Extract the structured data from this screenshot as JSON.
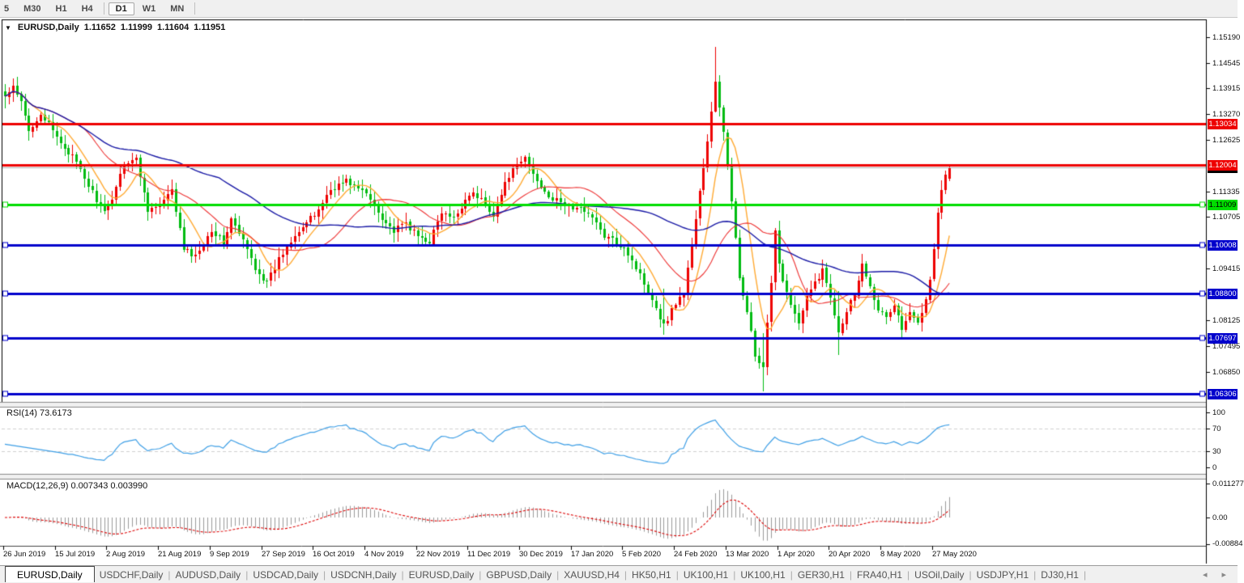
{
  "toolbar": {
    "timeframes": [
      {
        "label": "5",
        "active": false
      },
      {
        "label": "M30",
        "active": false
      },
      {
        "label": "H1",
        "active": false
      },
      {
        "label": "H4",
        "active": false
      },
      {
        "sep": true
      },
      {
        "label": "D1",
        "active": true
      },
      {
        "label": "W1",
        "active": false
      },
      {
        "label": "MN",
        "active": false
      },
      {
        "sep": true
      }
    ]
  },
  "chart_header": {
    "dropdown_icon": "▼",
    "symbol": "EURUSD,Daily",
    "open": "1.11652",
    "high": "1.11999",
    "low": "1.11604",
    "close": "1.11951"
  },
  "price_axis": {
    "ticks": [
      "1.15190",
      "1.14545",
      "1.13915",
      "1.13270",
      "1.12625",
      "1.11335",
      "1.10705",
      "1.09415",
      "1.08125",
      "1.07495",
      "1.06850"
    ]
  },
  "levels": [
    {
      "label": "1.13034",
      "value": 1.13034,
      "color": "#ee0000",
      "text": "#ffffff",
      "handles": false
    },
    {
      "label": "1.12004",
      "value": 1.12004,
      "color": "#ee0000",
      "text": "#ffffff",
      "handles": false
    },
    {
      "label": "1.11009",
      "value": 1.11009,
      "color": "#00dd00",
      "text": "#000000",
      "handles": true
    },
    {
      "label": "1.10008",
      "value": 1.10008,
      "color": "#0000cc",
      "text": "#ffffff",
      "handles": true
    },
    {
      "label": "1.08800",
      "value": 1.088,
      "color": "#0000cc",
      "text": "#ffffff",
      "handles": true
    },
    {
      "label": "1.07697",
      "value": 1.07697,
      "color": "#0000cc",
      "text": "#ffffff",
      "handles": true
    },
    {
      "label": "1.06306",
      "value": 1.06306,
      "color": "#0000cc",
      "text": "#ffffff",
      "handles": true
    }
  ],
  "current_price": {
    "label": "1.11951",
    "value": 1.11951,
    "line_color": "#b0b0b0",
    "badge_bg": "#000000",
    "badge_text": "#ffffff"
  },
  "rsi_panel": {
    "label": "RSI(14) 73.6173",
    "value": 73.6173,
    "axis": [
      {
        "label": "100",
        "value": 100
      },
      {
        "label": "70",
        "value": 70
      },
      {
        "label": "30",
        "value": 30
      },
      {
        "label": "0",
        "value": 0
      }
    ],
    "level_lines": [
      70,
      30
    ],
    "line_color": "#3e9fe6"
  },
  "macd_panel": {
    "label": "MACD(12,26,9) 0.007343 0.003990",
    "macd_value": 0.007343,
    "signal_value": 0.00399,
    "axis_max": {
      "label": "0.011277",
      "value": 0.011277
    },
    "axis_zero": {
      "label": "0.00",
      "value": 0
    },
    "axis_min": {
      "label": "-0.00884",
      "value": -0.00884
    },
    "hist_color": "#9a9a9a",
    "signal_color": "#dd0000"
  },
  "date_axis": {
    "labels": [
      "26 Jun 2019",
      "15 Jul 2019",
      "2 Aug 2019",
      "21 Aug 2019",
      "9 Sep 2019",
      "27 Sep 2019",
      "16 Oct 2019",
      "4 Nov 2019",
      "22 Nov 2019",
      "11 Dec 2019",
      "30 Dec 2019",
      "17 Jan 2020",
      "5 Feb 2020",
      "24 Feb 2020",
      "13 Mar 2020",
      "1 Apr 2020",
      "20 Apr 2020",
      "8 May 2020",
      "27 May 2020"
    ]
  },
  "tabs": {
    "items": [
      {
        "label": "EURUSD,Daily",
        "active": true
      },
      {
        "label": "USDCHF,Daily",
        "active": false
      },
      {
        "label": "AUDUSD,Daily",
        "active": false
      },
      {
        "label": "USDCAD,Daily",
        "active": false
      },
      {
        "label": "USDCNH,Daily",
        "active": false
      },
      {
        "label": "EURUSD,Daily",
        "active": false
      },
      {
        "label": "GBPUSD,Daily",
        "active": false
      },
      {
        "label": "XAUUSD,H4",
        "active": false
      },
      {
        "label": "HK50,H1",
        "active": false
      },
      {
        "label": "UK100,H1",
        "active": false
      },
      {
        "label": "UK100,H1",
        "active": false
      },
      {
        "label": "GER30,H1",
        "active": false
      },
      {
        "label": "FRA40,H1",
        "active": false
      },
      {
        "label": "USOil,Daily",
        "active": false
      },
      {
        "label": "USDJPY,H1",
        "active": false
      },
      {
        "label": "DJ30,H1",
        "active": false
      }
    ],
    "scroll_left": "◂",
    "scroll_right": "▸"
  },
  "chart_data": {
    "type": "candlestick",
    "symbol": "EURUSD",
    "timeframe": "Daily",
    "convention": {
      "bull_color": "#ee0000",
      "bear_color": "#00bb11",
      "note": "red = up candle, green = down candle"
    },
    "price_range": {
      "top": 1.1563,
      "bottom": 1.061
    },
    "bars": 239,
    "close_anchors": [
      [
        0,
        1.137
      ],
      [
        2,
        1.1392
      ],
      [
        4,
        1.1355
      ],
      [
        6,
        1.1285
      ],
      [
        9,
        1.133
      ],
      [
        13,
        1.1268
      ],
      [
        17,
        1.122
      ],
      [
        21,
        1.115
      ],
      [
        25,
        1.1078
      ],
      [
        27,
        1.112
      ],
      [
        30,
        1.1205
      ],
      [
        33,
        1.1215
      ],
      [
        36,
        1.109
      ],
      [
        39,
        1.1098
      ],
      [
        42,
        1.1135
      ],
      [
        45,
        1.099
      ],
      [
        48,
        1.0972
      ],
      [
        52,
        1.104
      ],
      [
        55,
        1.1005
      ],
      [
        57,
        1.1065
      ],
      [
        60,
        1.101
      ],
      [
        63,
        1.0945
      ],
      [
        66,
        1.0905
      ],
      [
        69,
        1.0965
      ],
      [
        73,
        1.103
      ],
      [
        78,
        1.1075
      ],
      [
        82,
        1.114
      ],
      [
        86,
        1.1162
      ],
      [
        91,
        1.1128
      ],
      [
        95,
        1.107
      ],
      [
        98,
        1.1035
      ],
      [
        101,
        1.1055
      ],
      [
        104,
        1.1022
      ],
      [
        107,
        1.101
      ],
      [
        110,
        1.108
      ],
      [
        113,
        1.1065
      ],
      [
        117,
        1.113
      ],
      [
        120,
        1.1115
      ],
      [
        123,
        1.1078
      ],
      [
        127,
        1.1175
      ],
      [
        131,
        1.1218
      ],
      [
        134,
        1.116
      ],
      [
        138,
        1.1115
      ],
      [
        143,
        1.1092
      ],
      [
        147,
        1.1085
      ],
      [
        151,
        1.1022
      ],
      [
        156,
        1.0998
      ],
      [
        159,
        1.0945
      ],
      [
        163,
        1.0868
      ],
      [
        166,
        1.08
      ],
      [
        169,
        1.0858
      ],
      [
        171,
        1.088
      ],
      [
        173,
        1.1
      ],
      [
        175,
        1.1135
      ],
      [
        177,
        1.1255
      ],
      [
        179,
        1.1405
      ],
      [
        181,
        1.1285
      ],
      [
        183,
        1.1105
      ],
      [
        185,
        1.092
      ],
      [
        187,
        1.084
      ],
      [
        189,
        1.0722
      ],
      [
        191,
        1.069
      ],
      [
        192,
        1.0802
      ],
      [
        193,
        1.0902
      ],
      [
        194,
        1.1032
      ],
      [
        195,
        1.0962
      ],
      [
        196,
        1.0912
      ],
      [
        198,
        1.0858
      ],
      [
        200,
        1.0802
      ],
      [
        202,
        1.0868
      ],
      [
        204,
        1.0908
      ],
      [
        206,
        1.0938
      ],
      [
        208,
        1.0872
      ],
      [
        210,
        1.0788
      ],
      [
        212,
        1.0838
      ],
      [
        214,
        1.0882
      ],
      [
        216,
        1.0952
      ],
      [
        218,
        1.0902
      ],
      [
        220,
        1.0842
      ],
      [
        222,
        1.0818
      ],
      [
        224,
        1.0852
      ],
      [
        226,
        1.0792
      ],
      [
        228,
        1.0828
      ],
      [
        230,
        1.0808
      ],
      [
        232,
        1.0872
      ],
      [
        233,
        1.0922
      ],
      [
        234,
        1.0992
      ],
      [
        235,
        1.1082
      ],
      [
        236,
        1.1142
      ],
      [
        237,
        1.1172
      ],
      [
        238,
        1.1195
      ]
    ],
    "wick_overrides": {
      "0": [
        1.1402,
        1.1342
      ],
      "166": [
        1.0892,
        1.0778
      ],
      "179": [
        1.1495,
        1.1332
      ],
      "191": [
        1.0782,
        1.0636
      ],
      "210": [
        1.0886,
        1.0727
      ],
      "226": [
        1.0848,
        1.0766
      ]
    },
    "moving_averages": [
      {
        "period": 8,
        "color": "#ffaa33",
        "width": 1.4
      },
      {
        "period": 21,
        "color": "#ee3333",
        "width": 1.1
      },
      {
        "period": 55,
        "color": "#1a1aa6",
        "width": 1.4
      }
    ],
    "indicators": [
      {
        "name": "RSI",
        "params": "14",
        "current": "73.6173"
      },
      {
        "name": "MACD",
        "params": "12,26,9",
        "current_main": "0.007343",
        "current_signal": "0.003990"
      }
    ]
  }
}
